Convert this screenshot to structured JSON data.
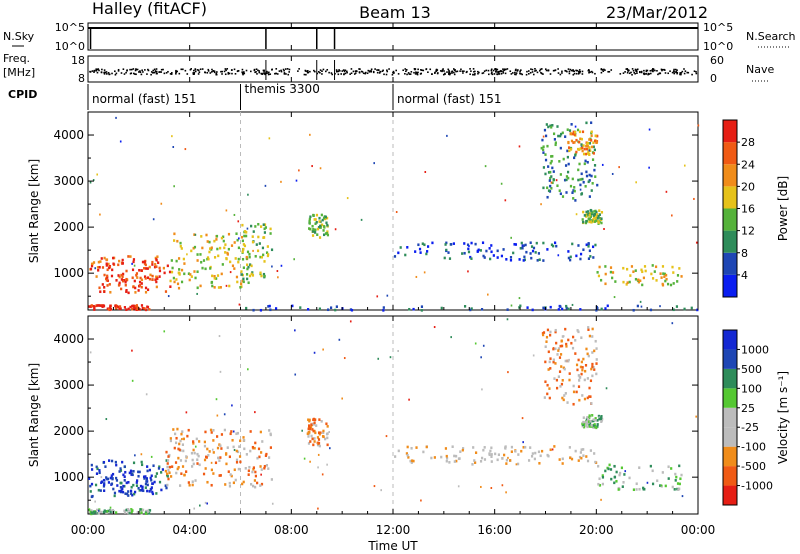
{
  "header": {
    "station": "Halley (fitACF)",
    "beam": "Beam 13",
    "date": "23/Mar/2012"
  },
  "aux_panels": {
    "nsky": {
      "label": "N.Sky",
      "tick_top": "10^5",
      "tick_bottom": "10^0"
    },
    "nsearch": {
      "label": "N.Search",
      "tick_top": "10^5",
      "tick_bottom": "10^0"
    },
    "freq": {
      "label_line1": "Freq.",
      "label_line2": "[MHz]",
      "tick_top": "18",
      "tick_bottom": "8"
    },
    "nave": {
      "label": "Nave",
      "tick_top": "60",
      "tick_bottom": "0"
    },
    "cpid": {
      "label": "CPID"
    }
  },
  "cpid_segments": [
    {
      "text": "normal (fast) 151",
      "start_hour": 0,
      "end_hour": 6
    },
    {
      "text": "themis 3300",
      "start_hour": 6,
      "end_hour": 12
    },
    {
      "text": "normal (fast) 151",
      "start_hour": 12,
      "end_hour": 24
    }
  ],
  "time_axis": {
    "label": "Time UT",
    "ticks": [
      "00:00",
      "04:00",
      "08:00",
      "12:00",
      "16:00",
      "20:00",
      "00:00"
    ],
    "tick_hours": [
      0,
      4,
      8,
      12,
      16,
      20,
      24
    ],
    "range_hours": [
      0,
      24
    ]
  },
  "colors": {
    "power": [
      "#0a1ef0",
      "#1e46b4",
      "#2e8c5a",
      "#55b23a",
      "#e6c21a",
      "#f08c1a",
      "#f05a14",
      "#e61e14"
    ],
    "velocity": [
      "#e61e14",
      "#f05a14",
      "#f08c1a",
      "#bcbcbc",
      "#bcbcbc",
      "#55c832",
      "#2e8c5a",
      "#1e46b4",
      "#1428d2"
    ]
  },
  "chart_data": [
    {
      "type": "heatmap",
      "name": "Power",
      "ylabel": "Slant Range [km]",
      "ylim": [
        200,
        4500
      ],
      "yticks": [
        1000,
        2000,
        3000,
        4000
      ],
      "xlim": [
        0,
        24
      ],
      "colorbar": {
        "label": "Power [dB]",
        "range": [
          0,
          32
        ],
        "tick_values": [
          4,
          8,
          12,
          16,
          20,
          24,
          28
        ],
        "ticks": [
          "4",
          "8",
          "12",
          "16",
          "20",
          "24",
          "28"
        ]
      },
      "regions": [
        {
          "t0": 0.0,
          "t1": 3.2,
          "r0": 600,
          "r1": 1400,
          "level": 6
        },
        {
          "t0": 0.4,
          "t1": 2.8,
          "r0": 700,
          "r1": 1300,
          "level": 7
        },
        {
          "t0": 3.2,
          "t1": 6.4,
          "r0": 700,
          "r1": 1900,
          "level": 4
        },
        {
          "t0": 6.0,
          "t1": 7.2,
          "r0": 900,
          "r1": 2100,
          "level": 3
        },
        {
          "t0": 0.0,
          "t1": 2.4,
          "r0": 230,
          "r1": 330,
          "level": 7
        },
        {
          "t0": 8.6,
          "t1": 9.4,
          "r0": 1800,
          "r1": 2300,
          "level": 3
        },
        {
          "t0": 12.0,
          "t1": 20.0,
          "r0": 1300,
          "r1": 1700,
          "level": 1
        },
        {
          "t0": 20.0,
          "t1": 23.4,
          "r0": 750,
          "r1": 1200,
          "level": 4
        },
        {
          "t0": 17.8,
          "t1": 20.0,
          "r0": 2600,
          "r1": 4300,
          "level": 2
        },
        {
          "t0": 18.8,
          "t1": 20.0,
          "r0": 3600,
          "r1": 4100,
          "level": 5
        },
        {
          "t0": 19.4,
          "t1": 20.2,
          "r0": 2100,
          "r1": 2400,
          "level": 3
        },
        {
          "t0": 6.0,
          "t1": 24.0,
          "r0": 220,
          "r1": 320,
          "level": 1
        }
      ]
    },
    {
      "type": "heatmap",
      "name": "Velocity",
      "ylabel": "Slant Range [km]",
      "ylim": [
        200,
        4500
      ],
      "yticks": [
        1000,
        2000,
        3000,
        4000
      ],
      "xlim": [
        0,
        24
      ],
      "colorbar": {
        "label": "Velocity [m s⁻¹]",
        "ticks": [
          "1000",
          "500",
          "100",
          "25",
          "-25",
          "-100",
          "-500",
          "-1000"
        ]
      },
      "regions": [
        {
          "t0": 0.0,
          "t1": 3.2,
          "r0": 600,
          "r1": 1400,
          "level": 7
        },
        {
          "t0": 0.4,
          "t1": 2.6,
          "r0": 700,
          "r1": 1200,
          "level": 8
        },
        {
          "t0": 3.0,
          "t1": 7.2,
          "r0": 800,
          "r1": 2100,
          "level": 2
        },
        {
          "t0": 0.0,
          "t1": 2.4,
          "r0": 230,
          "r1": 330,
          "level": 5
        },
        {
          "t0": 8.6,
          "t1": 9.4,
          "r0": 1700,
          "r1": 2300,
          "level": 2
        },
        {
          "t0": 12.0,
          "t1": 20.0,
          "r0": 1300,
          "r1": 1700,
          "level": 3
        },
        {
          "t0": 20.0,
          "t1": 23.4,
          "r0": 750,
          "r1": 1300,
          "level": 5
        },
        {
          "t0": 17.8,
          "t1": 20.0,
          "r0": 2600,
          "r1": 4300,
          "level": 2
        },
        {
          "t0": 19.4,
          "t1": 20.2,
          "r0": 2100,
          "r1": 2400,
          "level": 5
        }
      ]
    }
  ]
}
